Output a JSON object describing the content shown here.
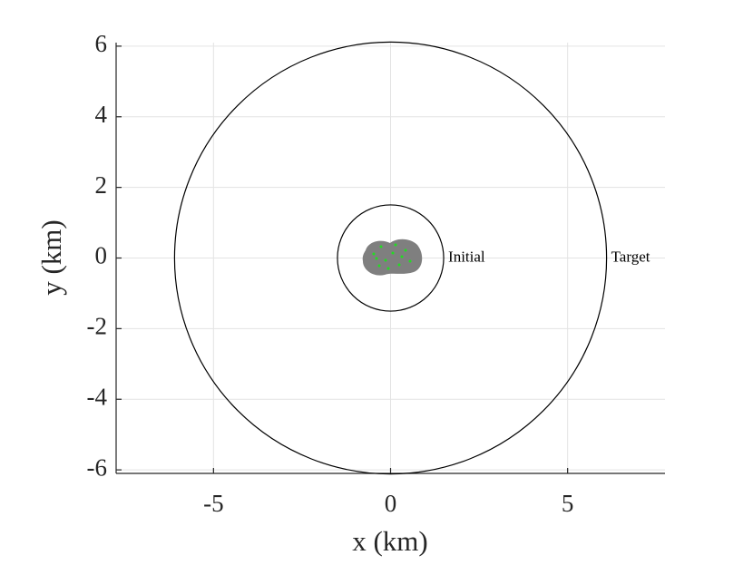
{
  "chart_data": {
    "type": "circles",
    "xlabel": "x (km)",
    "ylabel": "y (km)",
    "xlim": [
      -7.75,
      7.75
    ],
    "ylim": [
      -6.1,
      6.1
    ],
    "xticks": [
      -5,
      0,
      5
    ],
    "yticks": [
      -6,
      -4,
      -2,
      0,
      2,
      4,
      6
    ],
    "grid": true,
    "color": "#000000",
    "circles": [
      {
        "name": "Initial",
        "radius": 1.5
      },
      {
        "name": "Target",
        "radius": 6.1
      }
    ]
  }
}
